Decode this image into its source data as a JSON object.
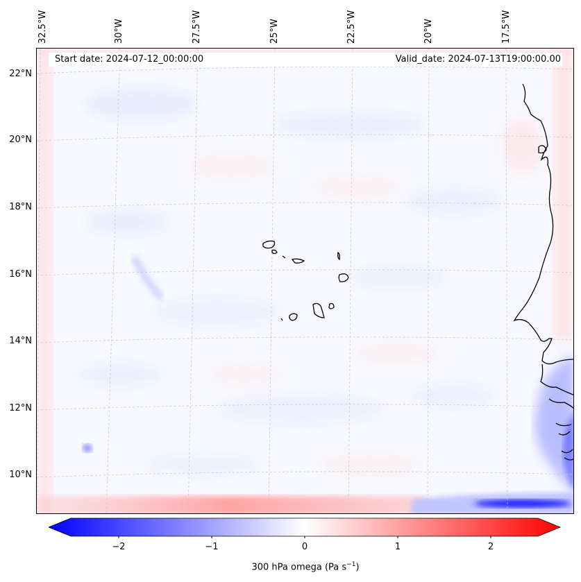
{
  "header": {
    "start_date": "Start date: 2024-07-12_00:00:00",
    "valid_date": "Valid_date: 2024-07-13T19:00:00.00"
  },
  "axes": {
    "longitude_labels": [
      "32.5°W",
      "30°W",
      "27.5°W",
      "25°W",
      "22.5°W",
      "20°W",
      "17.5°W"
    ],
    "latitude_labels": [
      "22°N",
      "20°N",
      "18°N",
      "16°N",
      "14°N",
      "12°N",
      "10°N"
    ]
  },
  "colorbar": {
    "ticks": [
      "−2",
      "−1",
      "0",
      "1",
      "2"
    ],
    "label_main": "300 hPa omega (Pa s",
    "label_exp": "−1",
    "label_close": ")",
    "min_color": "#0000ff",
    "mid_color": "#ffffff",
    "max_color": "#ff0000"
  },
  "map_features": {
    "land": [
      "Cabo Verde islands",
      "West African coastline"
    ]
  }
}
